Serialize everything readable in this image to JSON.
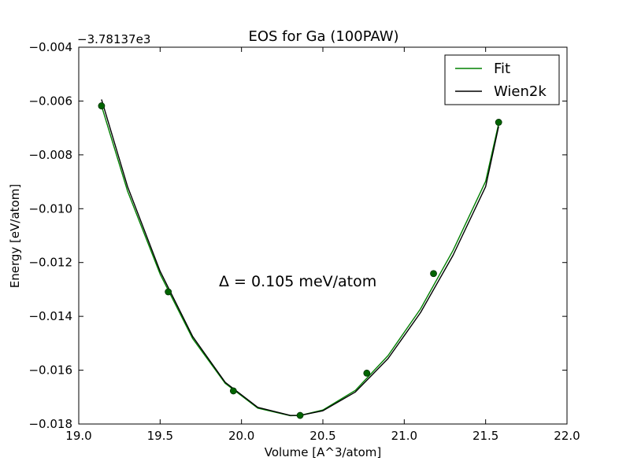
{
  "chart_data": {
    "type": "line",
    "title": "EOS for Ga (100PAW)",
    "xlabel": "Volume [A^3/atom]",
    "ylabel": "Energy [eV/atom]",
    "y_offset_label": "−3.78137e3",
    "xlim": [
      19.0,
      22.0
    ],
    "ylim": [
      -0.018,
      -0.004
    ],
    "x_ticks": [
      19.0,
      19.5,
      20.0,
      20.5,
      21.0,
      21.5,
      22.0
    ],
    "x_tick_labels": [
      "19.0",
      "19.5",
      "20.0",
      "20.5",
      "21.0",
      "21.5",
      "22.0"
    ],
    "y_ticks": [
      -0.004,
      -0.006,
      -0.008,
      -0.01,
      -0.012,
      -0.014,
      -0.016,
      -0.018
    ],
    "y_tick_labels": [
      "−0.004",
      "−0.006",
      "−0.008",
      "−0.010",
      "−0.012",
      "−0.014",
      "−0.016",
      "−0.018"
    ],
    "grid": false,
    "legend_position": "top-right",
    "annotation": "Δ = 0.105 meV/atom",
    "series": [
      {
        "name": "Fit",
        "kind": "curve",
        "color": "#008000",
        "x": [
          19.14,
          19.3,
          19.5,
          19.7,
          19.9,
          20.1,
          20.3,
          20.36,
          20.5,
          20.7,
          20.9,
          21.1,
          21.3,
          21.5,
          21.58
        ],
        "y": [
          -0.00618,
          -0.00935,
          -0.01243,
          -0.01483,
          -0.01649,
          -0.01741,
          -0.01769,
          -0.01768,
          -0.01748,
          -0.01675,
          -0.01546,
          -0.01372,
          -0.01155,
          -0.00898,
          -0.00684
        ]
      },
      {
        "name": "Wien2k",
        "kind": "curve",
        "color": "#000000",
        "x": [
          19.14,
          19.3,
          19.5,
          19.7,
          19.9,
          20.1,
          20.3,
          20.36,
          20.5,
          20.7,
          20.9,
          21.1,
          21.3,
          21.5,
          21.58
        ],
        "y": [
          -0.00594,
          -0.00918,
          -0.01232,
          -0.01475,
          -0.01645,
          -0.01738,
          -0.01768,
          -0.01768,
          -0.01751,
          -0.01681,
          -0.01557,
          -0.01386,
          -0.01173,
          -0.00918,
          -0.00694
        ]
      },
      {
        "kind": "points",
        "color": "#006400",
        "x": [
          19.14,
          19.55,
          19.95,
          20.36,
          20.77,
          21.18,
          21.58
        ],
        "y": [
          -0.00618,
          -0.01309,
          -0.01677,
          -0.01768,
          -0.01611,
          -0.01241,
          -0.00679
        ]
      }
    ]
  }
}
